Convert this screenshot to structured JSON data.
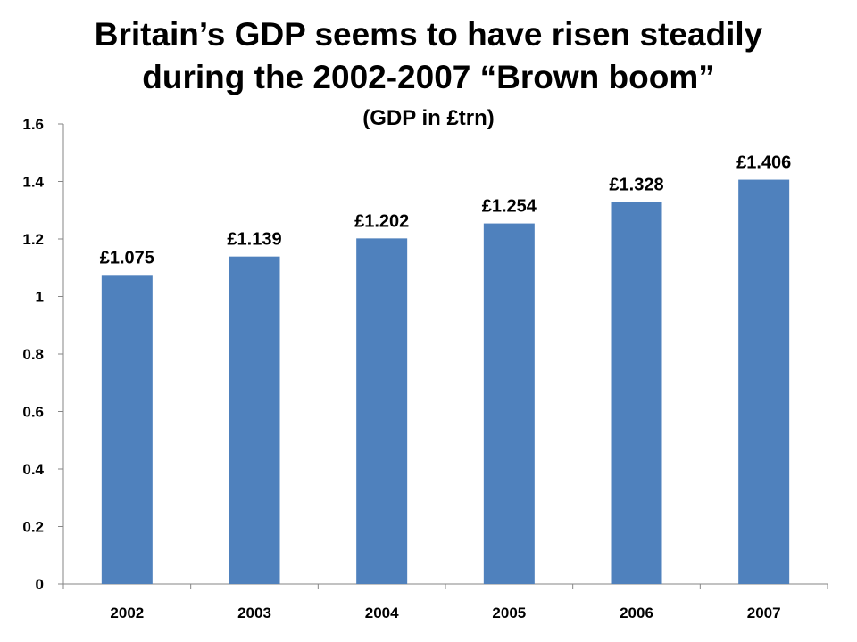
{
  "chart_data": {
    "type": "bar",
    "title_lines": [
      "Britain’s GDP seems to have risen steadily",
      "during the 2002-2007 “Brown boom”"
    ],
    "subtitle": "(GDP in £trn)",
    "categories": [
      "2002",
      "2003",
      "2004",
      "2005",
      "2006",
      "2007"
    ],
    "values": [
      1.075,
      1.139,
      1.202,
      1.254,
      1.328,
      1.406
    ],
    "data_labels": [
      "£1.075",
      "£1.139",
      "£1.202",
      "£1.254",
      "£1.328",
      "£1.406"
    ],
    "y_ticks": [
      "0",
      "0.2",
      "0.4",
      "0.6",
      "0.8",
      "1",
      "1.2",
      "1.4",
      "1.6"
    ],
    "ylim": [
      0,
      1.6
    ],
    "xlabel": "",
    "ylabel": "",
    "grid": false,
    "legend": "none",
    "bar_color": "#4F81BD",
    "axis_color": "#868686"
  }
}
